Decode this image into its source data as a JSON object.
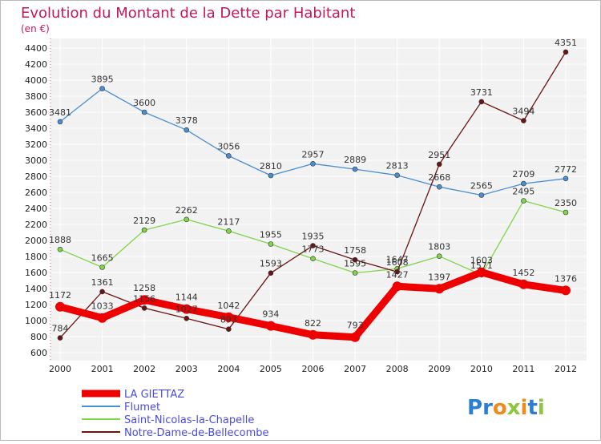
{
  "chart_data": {
    "type": "line",
    "title": "Evolution du Montant de la Dette par Habitant",
    "subtitle": "(en €)",
    "categories": [
      "2000",
      "2001",
      "2002",
      "2003",
      "2004",
      "2005",
      "2006",
      "2007",
      "2008",
      "2009",
      "2010",
      "2011",
      "2012"
    ],
    "ylim": [
      600,
      4400
    ],
    "yticks": [
      600,
      800,
      1000,
      1200,
      1400,
      1600,
      1800,
      2000,
      2200,
      2400,
      2600,
      2800,
      3000,
      3200,
      3400,
      3600,
      3800,
      4000,
      4200,
      4400
    ],
    "grid": true,
    "legend_position": "bottom-left",
    "series": [
      {
        "name": "LA GIETTAZ",
        "color": "#ee0000",
        "values": [
          1172,
          1033,
          1258,
          1144,
          1042,
          934,
          822,
          793,
          1427,
          1397,
          1603,
          1452,
          1376
        ]
      },
      {
        "name": "Flumet",
        "color": "#4a8fd0",
        "values": [
          3481,
          3895,
          3600,
          3378,
          3056,
          2810,
          2957,
          2889,
          2813,
          2668,
          2565,
          2709,
          2772
        ]
      },
      {
        "name": "Saint-Nicolas-la-Chapelle",
        "color": "#7fd44a",
        "values": [
          1888,
          1665,
          2129,
          2262,
          2117,
          1955,
          1773,
          1595,
          1647,
          1803,
          1571,
          2495,
          2350
        ]
      },
      {
        "name": "Notre-Dame-de-Bellecombe",
        "color": "#6b1414",
        "values": [
          784,
          1361,
          1156,
          1027,
          893,
          1593,
          1935,
          1758,
          1608,
          2951,
          3731,
          3494,
          4351
        ]
      }
    ]
  },
  "brand": {
    "logo_letters": [
      "P",
      "r",
      "o",
      "x",
      "i",
      "t",
      "i"
    ],
    "logo_colors": [
      "#2a7fd4",
      "#2a7fd4",
      "#f08a1a",
      "#8cc63f",
      "#f08a1a",
      "#2a7fd4",
      "#8cc63f"
    ]
  }
}
